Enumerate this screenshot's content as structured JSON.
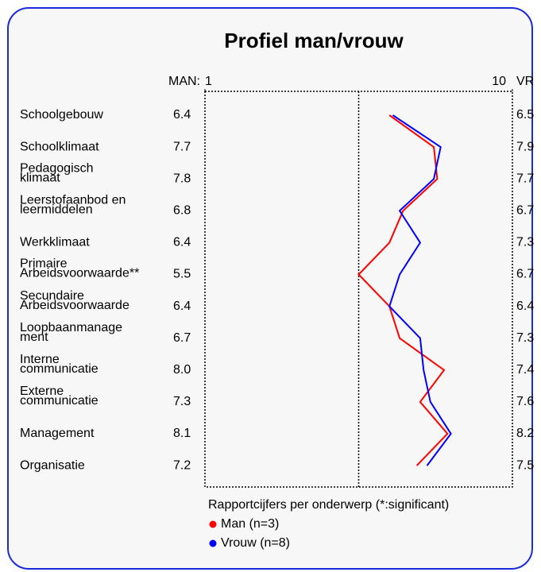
{
  "chart_data": {
    "type": "profile",
    "title": "Profiel man/vrouw",
    "subtitle": "Rapportcijfers per onderwerp (*:significant)",
    "left_header": "MAN:",
    "right_header": "VR",
    "categories": [
      [
        "Schoolgebouw"
      ],
      [
        "Schoolklimaat"
      ],
      [
        "Pedagogisch",
        "klimaat"
      ],
      [
        "Leerstofaanbod en",
        "leermiddelen"
      ],
      [
        "Werkklimaat"
      ],
      [
        "Primaire",
        "Arbeidsvoorwaarde**"
      ],
      [
        "Secundaire",
        "Arbeidsvoorwaarde"
      ],
      [
        "Loopbaanmanage",
        "ment"
      ],
      [
        "Interne",
        "communicatie"
      ],
      [
        "Externe",
        "communicatie"
      ],
      [
        "Management"
      ],
      [
        "Organisatie"
      ]
    ],
    "xlim": [
      1,
      10
    ],
    "xticks": [
      1,
      10
    ],
    "series": [
      {
        "name": "Man (n=3)",
        "color": "#ff0000",
        "values": [
          6.4,
          7.7,
          7.8,
          6.8,
          6.4,
          5.5,
          6.4,
          6.7,
          8.0,
          7.3,
          8.1,
          7.2
        ],
        "value_labels": [
          "6.4",
          "7.7",
          "7.8",
          "6.8",
          "6.4",
          "5.5",
          "6.4",
          "6.7",
          "8.0",
          "7.3",
          "8.1",
          "7.2"
        ]
      },
      {
        "name": "Vrouw (n=8)",
        "color": "#0000ff",
        "values": [
          6.5,
          7.9,
          7.7,
          6.7,
          7.3,
          6.7,
          6.4,
          7.3,
          7.4,
          7.6,
          8.2,
          7.5
        ],
        "value_labels": [
          "6.5",
          "7.9",
          "7.7",
          "6.7",
          "7.3",
          "6.7",
          "6.4",
          "7.3",
          "7.4",
          "7.6",
          "8.2",
          "7.5"
        ]
      }
    ]
  }
}
